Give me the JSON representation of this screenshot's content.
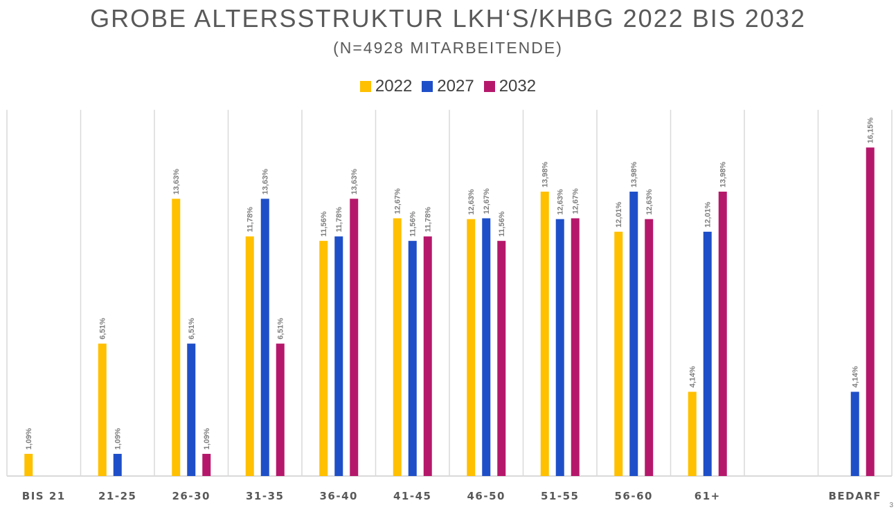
{
  "chart_data": {
    "type": "bar",
    "title": "GROBE ALTERSSTRUKTUR LKH‘S/KHBG 2022 BIS 2032",
    "subtitle": "(N=4928 MITARBEITENDE)",
    "xlabel": "",
    "ylabel": "",
    "ylim": [
      0,
      18
    ],
    "grid": "vertical category separators",
    "legend_position": "top-center",
    "categories": [
      "BIS 21",
      "21-25",
      "26-30",
      "31-35",
      "36-40",
      "41-45",
      "46-50",
      "51-55",
      "56-60",
      "61+",
      "",
      "BEDARF"
    ],
    "series": [
      {
        "name": "2022",
        "color": "#FFC000",
        "values": [
          1.09,
          6.51,
          13.63,
          11.78,
          11.56,
          12.67,
          12.63,
          13.98,
          12.01,
          4.14,
          null,
          null
        ],
        "labels": [
          "1,09%",
          "6,51%",
          "13,63%",
          "11,78%",
          "11,56%",
          "12,67%",
          "12,63%",
          "13,98%",
          "12,01%",
          "4,14%",
          null,
          null
        ]
      },
      {
        "name": "2027",
        "color": "#1F4FC8",
        "values": [
          null,
          1.09,
          6.51,
          13.63,
          11.78,
          11.56,
          12.67,
          12.63,
          13.98,
          12.01,
          null,
          4.14
        ],
        "labels": [
          null,
          "1,09%",
          "6,51%",
          "13,63%",
          "11,78%",
          "11,56%",
          "12,67%",
          "12,63%",
          "13,98%",
          "12,01%",
          null,
          "4,14%"
        ]
      },
      {
        "name": "2032",
        "color": "#B5186B",
        "values": [
          null,
          null,
          1.09,
          6.51,
          13.63,
          11.78,
          11.56,
          12.67,
          12.63,
          13.98,
          null,
          16.15
        ],
        "labels": [
          null,
          null,
          "1,09%",
          "6,51%",
          "13,63%",
          "11,78%",
          "11,56%",
          "12,67%",
          "12,63%",
          "13,98%",
          null,
          "16,15%"
        ]
      }
    ]
  },
  "page_number": "3"
}
